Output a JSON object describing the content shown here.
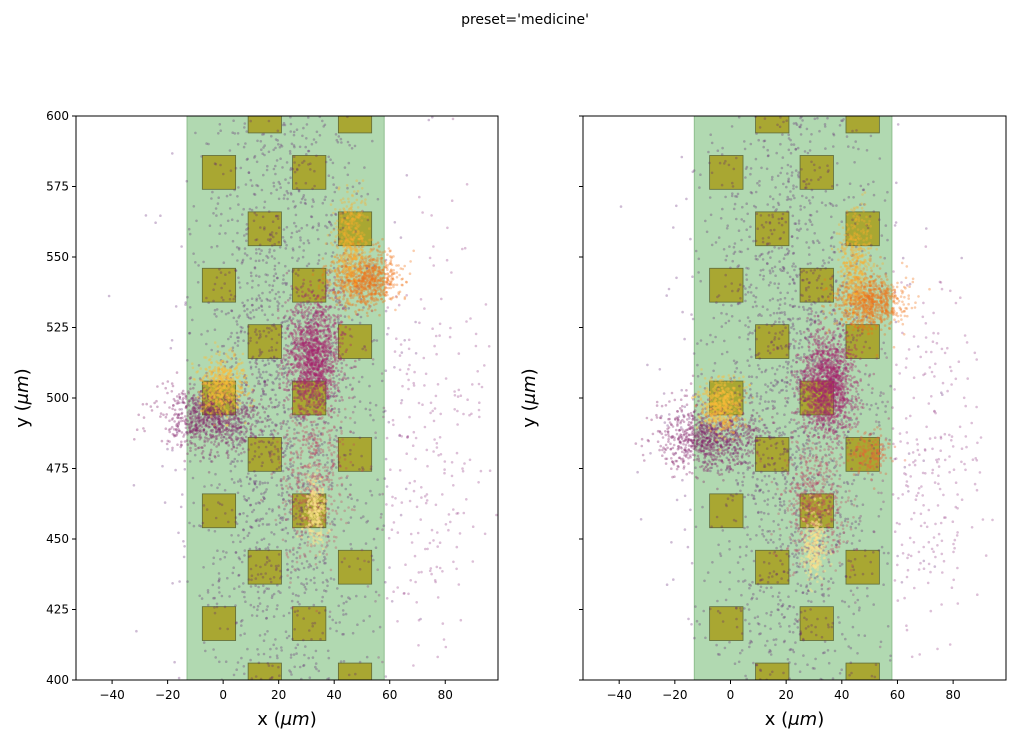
{
  "chart_data": {
    "type": "scatter",
    "title": "preset='medicine'",
    "panels": [
      {
        "name": "left",
        "xlabel": "x (",
        "xlabel_unit": "μm",
        "ylabel": "y (",
        "ylabel_unit": "μm",
        "xlim": [
          -53,
          99
        ],
        "ylim": [
          400,
          600
        ],
        "xticks": [
          -40,
          -20,
          0,
          20,
          40,
          60,
          80
        ],
        "yticks": [
          400,
          425,
          450,
          475,
          500,
          525,
          550,
          575,
          600
        ],
        "show_ytick_labels": true,
        "band": {
          "x": [
            -13,
            58
          ],
          "color": "#b1d9b1"
        },
        "clusters": [
          {
            "cx": 22,
            "cy": 500,
            "sx": 17,
            "sy": 70,
            "n": 2200,
            "color": "#5e1e6f",
            "alpha": 0.3
          },
          {
            "cx": 72,
            "cy": 480,
            "sx": 12,
            "sy": 40,
            "n": 250,
            "color": "#8c2a7c",
            "alpha": 0.3
          },
          {
            "cx": 33,
            "cy": 515,
            "sx": 5,
            "sy": 10,
            "n": 1400,
            "color": "#a5216c",
            "alpha": 0.35
          },
          {
            "cx": 51,
            "cy": 542,
            "sx": 6,
            "sy": 5,
            "n": 800,
            "color": "#f27317",
            "alpha": 0.35
          },
          {
            "cx": 46,
            "cy": 555,
            "sx": 3,
            "sy": 9,
            "n": 400,
            "color": "#fbae2d",
            "alpha": 0.35
          },
          {
            "cx": -4,
            "cy": 493,
            "sx": 9,
            "sy": 6,
            "n": 900,
            "color": "#85216b",
            "alpha": 0.35
          },
          {
            "cx": 0,
            "cy": 505,
            "sx": 4,
            "sy": 5,
            "n": 450,
            "color": "#fcbc3a",
            "alpha": 0.4
          },
          {
            "cx": 32,
            "cy": 472,
            "sx": 6,
            "sy": 14,
            "n": 500,
            "color": "#c23b5f",
            "alpha": 0.3
          },
          {
            "cx": 33,
            "cy": 460,
            "sx": 2,
            "sy": 6,
            "n": 250,
            "color": "#fde28c",
            "alpha": 0.45
          }
        ]
      },
      {
        "name": "right",
        "xlabel": "x (",
        "xlabel_unit": "μm",
        "ylabel": "y (",
        "ylabel_unit": "μm",
        "xlim": [
          -53,
          99
        ],
        "ylim": [
          400,
          600
        ],
        "xticks": [
          -40,
          -20,
          0,
          20,
          40,
          60,
          80
        ],
        "yticks": [
          400,
          425,
          450,
          475,
          500,
          525,
          550,
          575,
          600
        ],
        "show_ytick_labels": false,
        "band": {
          "x": [
            -13,
            58
          ],
          "color": "#b1d9b1"
        },
        "clusters": [
          {
            "cx": 22,
            "cy": 500,
            "sx": 17,
            "sy": 70,
            "n": 2200,
            "color": "#5e1e6f",
            "alpha": 0.3
          },
          {
            "cx": 70,
            "cy": 475,
            "sx": 10,
            "sy": 35,
            "n": 250,
            "color": "#8c2a7c",
            "alpha": 0.3
          },
          {
            "cx": 35,
            "cy": 505,
            "sx": 5,
            "sy": 9,
            "n": 1400,
            "color": "#a5216c",
            "alpha": 0.35
          },
          {
            "cx": 50,
            "cy": 534,
            "sx": 6,
            "sy": 5,
            "n": 800,
            "color": "#f27317",
            "alpha": 0.35
          },
          {
            "cx": 45,
            "cy": 548,
            "sx": 3,
            "sy": 9,
            "n": 400,
            "color": "#fbae2d",
            "alpha": 0.35
          },
          {
            "cx": -8,
            "cy": 486,
            "sx": 9,
            "sy": 6,
            "n": 900,
            "color": "#85216b",
            "alpha": 0.35
          },
          {
            "cx": -3,
            "cy": 497,
            "sx": 4,
            "sy": 5,
            "n": 450,
            "color": "#fcbc3a",
            "alpha": 0.4
          },
          {
            "cx": 30,
            "cy": 462,
            "sx": 6,
            "sy": 12,
            "n": 500,
            "color": "#c23b5f",
            "alpha": 0.3
          },
          {
            "cx": 30,
            "cy": 447,
            "sx": 2,
            "sy": 6,
            "n": 250,
            "color": "#fde28c",
            "alpha": 0.45
          },
          {
            "cx": 50,
            "cy": 480,
            "sx": 4,
            "sy": 4,
            "n": 150,
            "color": "#e7603a",
            "alpha": 0.35
          }
        ]
      }
    ],
    "electrodes": {
      "size": 12,
      "color": "#a89d1c",
      "columns": [
        {
          "x": -1.5,
          "y": [
            420,
            460,
            500,
            540,
            580
          ]
        },
        {
          "x": 15,
          "y": [
            400,
            440,
            480,
            520,
            560,
            600
          ]
        },
        {
          "x": 31,
          "y": [
            420,
            460,
            500,
            540,
            580
          ]
        },
        {
          "x": 47.5,
          "y": [
            400,
            440,
            480,
            520,
            560,
            600
          ]
        }
      ]
    }
  }
}
